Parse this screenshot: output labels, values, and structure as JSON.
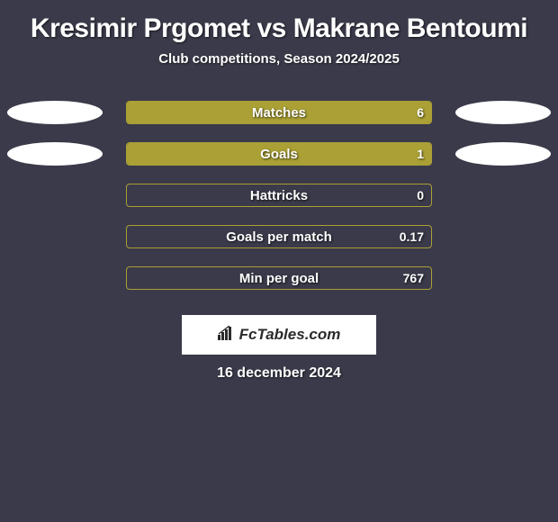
{
  "title": "Kresimir Prgomet vs Makrane Bentoumi",
  "subtitle": "Club competitions, Season 2024/2025",
  "date": "16 december 2024",
  "logo_text": "FcTables.com",
  "colors": {
    "background": "#3a3a4a",
    "bar_fill": "#aaa035",
    "bar_border": "#aaa035",
    "ellipse": "#ffffff",
    "text": "#ffffff",
    "logo_bg": "#ffffff",
    "logo_text": "#2b2b2b"
  },
  "layout": {
    "bar_track_width": 340,
    "bar_track_height": 26,
    "ellipse_width": 106,
    "ellipse_height": 26,
    "logo_box_width": 216,
    "logo_box_height": 44,
    "title_fontsize": 30,
    "subtitle_fontsize": 15,
    "label_fontsize": 15,
    "value_fontsize": 14,
    "date_fontsize": 16
  },
  "stats": [
    {
      "label": "Matches",
      "value_right": "6",
      "fill_left_pct": 0,
      "fill_right_pct": 100,
      "show_left_ellipse": true,
      "show_right_ellipse": true
    },
    {
      "label": "Goals",
      "value_right": "1",
      "fill_left_pct": 0,
      "fill_right_pct": 100,
      "show_left_ellipse": true,
      "show_right_ellipse": true
    },
    {
      "label": "Hattricks",
      "value_right": "0",
      "fill_left_pct": 0,
      "fill_right_pct": 0,
      "show_left_ellipse": false,
      "show_right_ellipse": false
    },
    {
      "label": "Goals per match",
      "value_right": "0.17",
      "fill_left_pct": 0,
      "fill_right_pct": 0,
      "show_left_ellipse": false,
      "show_right_ellipse": false
    },
    {
      "label": "Min per goal",
      "value_right": "767",
      "fill_left_pct": 0,
      "fill_right_pct": 0,
      "show_left_ellipse": false,
      "show_right_ellipse": false
    }
  ]
}
